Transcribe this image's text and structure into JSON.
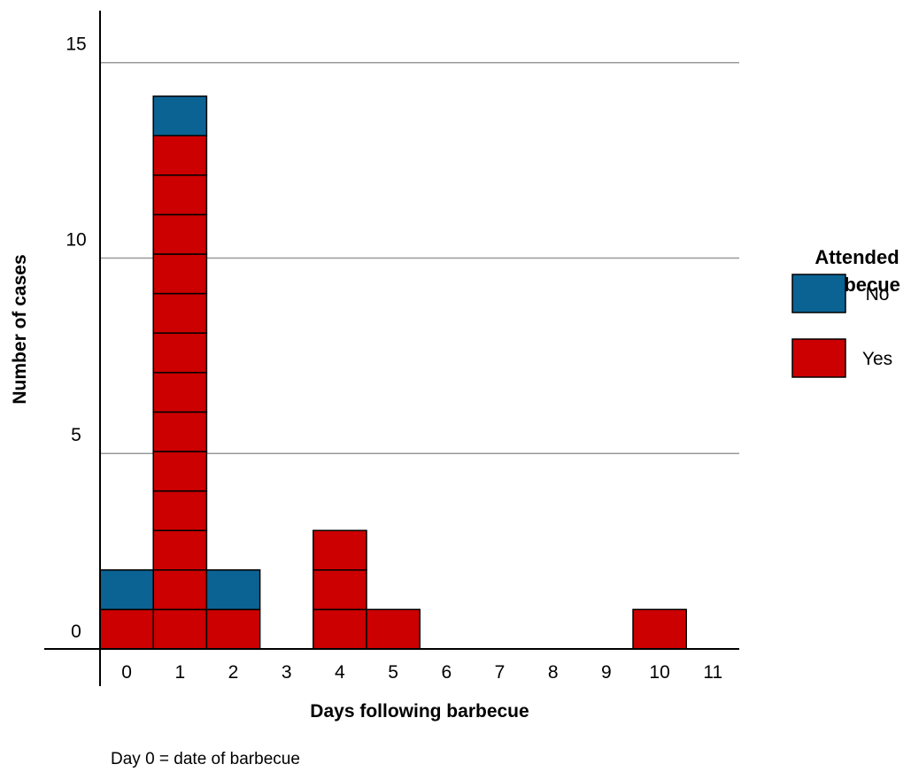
{
  "chart_data": {
    "type": "bar",
    "subtype": "epidemic-curve stacked unit cells",
    "x_values": [
      "0",
      "1",
      "2",
      "3",
      "4",
      "5",
      "6",
      "7",
      "8",
      "9",
      "10",
      "11"
    ],
    "series": [
      {
        "name": "Yes",
        "color": "#cc0000",
        "values": [
          1,
          13,
          1,
          0,
          3,
          1,
          0,
          0,
          0,
          0,
          1,
          0
        ]
      },
      {
        "name": "No",
        "color": "#0b6394",
        "values": [
          1,
          1,
          1,
          0,
          0,
          0,
          0,
          0,
          0,
          0,
          0,
          0
        ]
      }
    ],
    "y_ticks": [
      "0",
      "5",
      "10",
      "15"
    ],
    "ylim": [
      0,
      15
    ],
    "xlabel": "Days following barbecue",
    "ylabel": "Number of cases",
    "legend": {
      "title_line1": "Attended",
      "title_line2": "barbecue",
      "placement": "right",
      "entries": [
        "No",
        "Yes"
      ]
    },
    "grid": "horizontal at 5, 10, 15",
    "note": "Day 0 = date of barbecue"
  }
}
